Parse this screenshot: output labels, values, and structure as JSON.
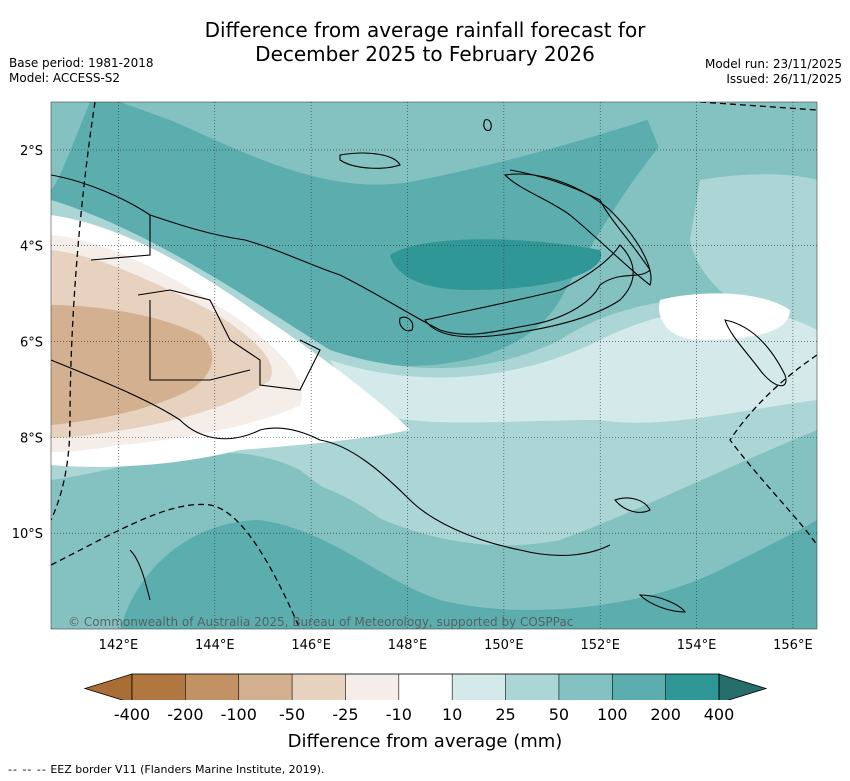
{
  "title_line1": "Difference from average rainfall forecast for",
  "title_line2": "December 2025 to February 2026",
  "meta_left": {
    "base_period": "Base period: 1981-2018",
    "model": "Model: ACCESS-S2"
  },
  "meta_right": {
    "model_run": "Model run: 23/11/2025",
    "issued": "Issued: 26/11/2025"
  },
  "map": {
    "lat_labels": [
      "2°S",
      "4°S",
      "6°S",
      "8°S",
      "10°S"
    ],
    "lat_values": [
      -2,
      -4,
      -6,
      -8,
      -10
    ],
    "lon_labels": [
      "142°E",
      "144°E",
      "146°E",
      "148°E",
      "150°E",
      "152°E",
      "154°E",
      "156°E"
    ],
    "lon_values": [
      142,
      144,
      146,
      148,
      150,
      152,
      154,
      156
    ],
    "extent": {
      "lon_min": 140.6,
      "lon_max": 156.5,
      "lat_min": -12.0,
      "lat_max": -1.0
    },
    "copyright": "© Commonwealth of Australia 2025, Bureau of Meteorology, supported by COSPPac"
  },
  "colorbar": {
    "title": "Difference from average (mm)",
    "ticks": [
      "-400",
      "-200",
      "-100",
      "-50",
      "-25",
      "-10",
      "10",
      "25",
      "50",
      "100",
      "200",
      "400"
    ],
    "colors": [
      "#a86e36",
      "#b07840",
      "#c29265",
      "#d3b08f",
      "#e7d2c0",
      "#f4ede8",
      "#ffffff",
      "#d4e9e9",
      "#acd6d6",
      "#84c2c2",
      "#5caeae",
      "#2f9896",
      "#266e6c"
    ]
  },
  "footer": {
    "dash": "-- -- --",
    "text": "EEZ border V11 (Flanders Marine Institute, 2019)."
  }
}
